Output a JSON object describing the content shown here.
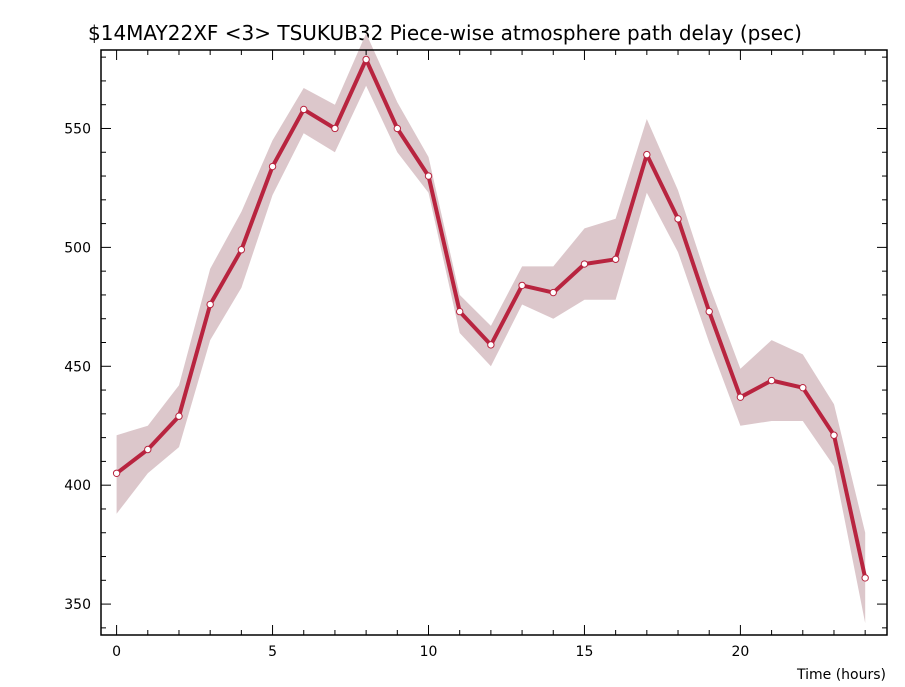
{
  "chart_data": {
    "type": "line",
    "title": "$14MAY22XF <3>  TSUKUB32  Piece-wise atmosphere path delay (psec)",
    "xlabel": "Time (hours)",
    "ylabel": "",
    "xlim": [
      -0.5,
      24.7
    ],
    "ylim": [
      337,
      583
    ],
    "x_ticks": [
      0,
      5,
      10,
      15,
      20
    ],
    "y_ticks": [
      350,
      400,
      450,
      500,
      550
    ],
    "grid": false,
    "series": [
      {
        "x": [
          0,
          1,
          2,
          3,
          4,
          5,
          6,
          7,
          8,
          9,
          10,
          11,
          12,
          13,
          14,
          15,
          16,
          17,
          18,
          19,
          20,
          21,
          22,
          23,
          24
        ],
        "values": [
          405,
          415,
          429,
          476,
          499,
          534,
          558,
          550,
          579,
          550,
          530,
          473,
          459,
          484,
          481,
          493,
          495,
          539,
          512,
          473,
          437,
          444,
          441,
          421,
          361
        ],
        "upper": [
          421,
          425,
          442,
          491,
          515,
          545,
          567,
          560,
          590,
          561,
          538,
          480,
          467,
          492,
          492,
          508,
          512,
          554,
          524,
          484,
          449,
          461,
          455,
          434,
          380
        ],
        "lower": [
          388,
          405,
          416,
          461,
          483,
          522,
          548,
          540,
          568,
          540,
          523,
          464,
          450,
          476,
          470,
          478,
          478,
          523,
          498,
          460,
          425,
          427,
          427,
          408,
          342
        ]
      }
    ],
    "colors": {
      "line": "#b8243f",
      "band": "#dcc7cb",
      "marker_fill": "#ffffff"
    }
  }
}
